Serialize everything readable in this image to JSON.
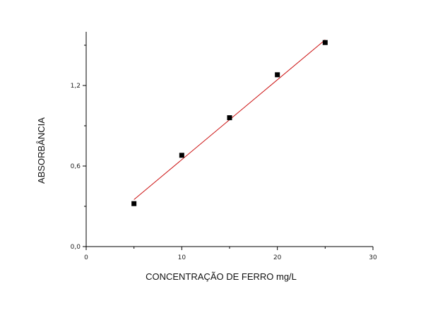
{
  "chart_data": {
    "type": "scatter",
    "title": "",
    "xlabel": "CONCENTRAÇÃO DE FERRO mg/L",
    "ylabel": "ABSORBÂNCIA",
    "xlim": [
      0,
      30
    ],
    "ylim": [
      0,
      1.6
    ],
    "x_ticks": [
      "0",
      "10",
      "20",
      "30"
    ],
    "x_ticks_minor": [
      5,
      15,
      25
    ],
    "y_ticks": [
      "0,0",
      "0,6",
      "1,2"
    ],
    "y_ticks_minor": [
      0.3,
      0.9,
      1.5
    ],
    "grid": false,
    "legend": "none",
    "series": [
      {
        "marker": "square",
        "color": "#000000",
        "x": [
          5,
          10,
          15,
          20,
          25
        ],
        "y": [
          0.32,
          0.68,
          0.96,
          1.28,
          1.52
        ]
      }
    ],
    "fit_line": {
      "color": "#cc1111",
      "x": [
        5,
        25
      ],
      "y": [
        0.35,
        1.54
      ]
    }
  }
}
